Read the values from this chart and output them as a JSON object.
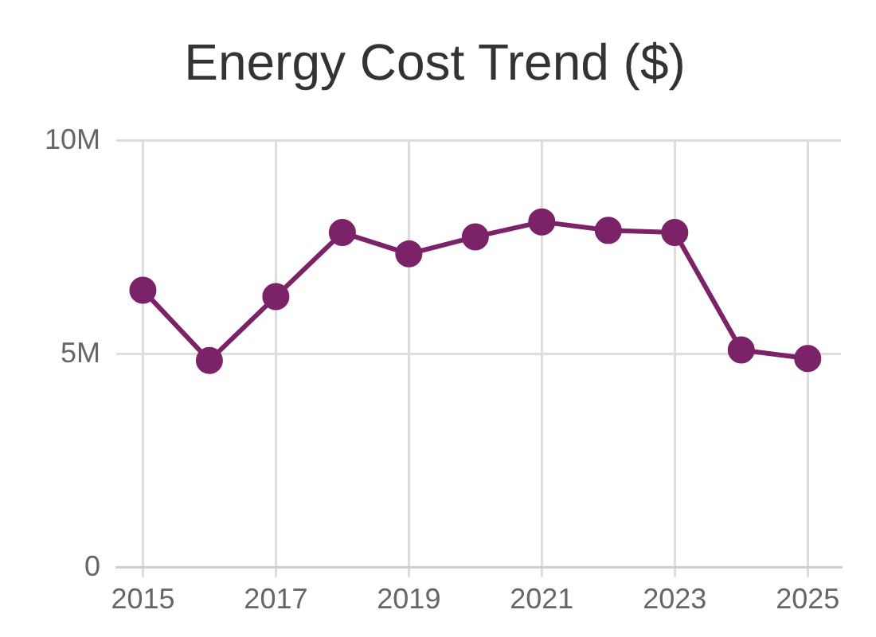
{
  "chart_data": {
    "type": "line",
    "title": "Energy Cost Trend ($)",
    "x": [
      2015,
      2016,
      2017,
      2018,
      2019,
      2020,
      2021,
      2022,
      2023,
      2024,
      2025
    ],
    "series": [
      {
        "color": "#7b2268",
        "values": [
          6500000,
          4850000,
          6350000,
          7850000,
          7350000,
          7750000,
          8100000,
          7900000,
          7850000,
          5100000,
          4900000
        ]
      }
    ],
    "xlim": [
      2014.6,
      2025.5
    ],
    "xticks": [
      2015,
      2017,
      2019,
      2021,
      2023,
      2025
    ],
    "ylim": [
      0,
      10000000
    ],
    "yticks": [
      {
        "value": 0,
        "label": "0"
      },
      {
        "value": 5000000,
        "label": "5M"
      },
      {
        "value": 10000000,
        "label": "10M"
      }
    ],
    "grid": true,
    "marker": "circle",
    "line_style": "solid",
    "legend": false
  }
}
